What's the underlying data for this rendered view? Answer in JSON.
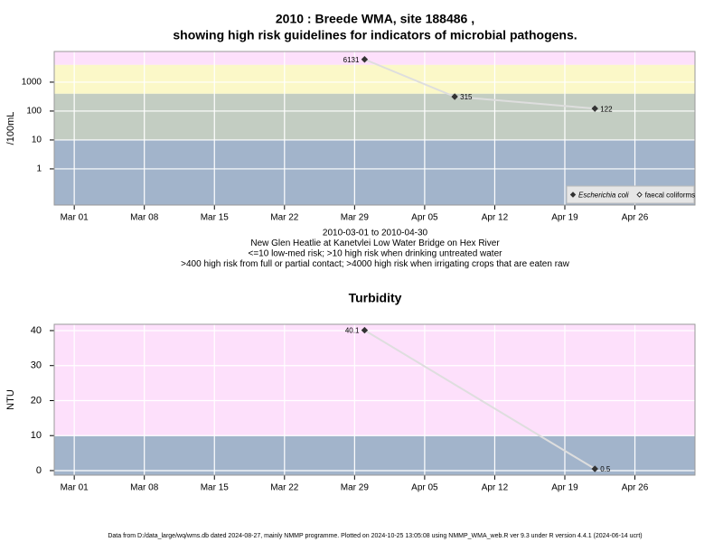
{
  "title": "2010 : Breede WMA, site 188486 ,",
  "subtitle": "showing high risk guidelines for indicators of microbial pathogens.",
  "footer": "Data from D:/data_large/wq/wms.db dated 2024-08-27, mainly NMMP programme. Plotted on 2024-10-25 13:05:08 using NMMP_WMA_web.R ver 9.3 under R version 4.4.1 (2024-06-14 ucrt)",
  "chart_data": [
    {
      "type": "line",
      "ylabel": "/100mL",
      "log_scale": true,
      "grid": true,
      "legend": "bottom-right",
      "x": [
        "2010-03-30",
        "2010-04-08",
        "2010-04-22"
      ],
      "xlim": [
        "2010-02-27",
        "2010-05-02"
      ],
      "xticks": [
        {
          "value": "2010-03-01",
          "label": "Mar 01"
        },
        {
          "value": "2010-03-08",
          "label": "Mar 08"
        },
        {
          "value": "2010-03-15",
          "label": "Mar 15"
        },
        {
          "value": "2010-03-22",
          "label": "Mar 22"
        },
        {
          "value": "2010-03-29",
          "label": "Mar 29"
        },
        {
          "value": "2010-04-05",
          "label": "Apr 05"
        },
        {
          "value": "2010-04-12",
          "label": "Apr 12"
        },
        {
          "value": "2010-04-19",
          "label": "Apr 19"
        },
        {
          "value": "2010-04-26",
          "label": "Apr 26"
        }
      ],
      "ylim": [
        0.056,
        11500
      ],
      "yticks": [
        1,
        10,
        100,
        1000
      ],
      "thresholds": [
        10,
        400,
        4000
      ],
      "band_colors": [
        "#a2b4cb",
        "#c3cdc2",
        "#fbf8c8",
        "#fde0fb"
      ],
      "line_color": "#dedede",
      "series": [
        {
          "name": "Escherichia coli",
          "color": "#333333",
          "values": [
            6131,
            315,
            122
          ]
        },
        {
          "name": "faecal coliforms",
          "color": "#333333",
          "values": [
            null,
            null,
            null
          ]
        }
      ],
      "caption": [
        "2010-03-01 to 2010-04-30",
        "New Glen Heatlie at Kanetvlei Low Water Bridge on Hex River",
        "<=10 low-med risk; >10 high risk when drinking untreated water",
        ">400 high risk from full or partial contact; >4000 high risk when irrigating crops that are eaten raw"
      ]
    },
    {
      "type": "line",
      "title": "Turbidity",
      "ylabel": "NTU",
      "log_scale": false,
      "grid": true,
      "x": [
        "2010-03-30",
        "2010-04-22"
      ],
      "xlim": [
        "2010-02-27",
        "2010-05-02"
      ],
      "xticks": [
        {
          "value": "2010-03-01",
          "label": "Mar 01"
        },
        {
          "value": "2010-03-08",
          "label": "Mar 08"
        },
        {
          "value": "2010-03-15",
          "label": "Mar 15"
        },
        {
          "value": "2010-03-22",
          "label": "Mar 22"
        },
        {
          "value": "2010-03-29",
          "label": "Mar 29"
        },
        {
          "value": "2010-04-05",
          "label": "Apr 05"
        },
        {
          "value": "2010-04-12",
          "label": "Apr 12"
        },
        {
          "value": "2010-04-19",
          "label": "Apr 19"
        },
        {
          "value": "2010-04-26",
          "label": "Apr 26"
        }
      ],
      "ylim": [
        -1.3,
        41.8
      ],
      "yticks": [
        0,
        10,
        20,
        30,
        40
      ],
      "thresholds": [
        10
      ],
      "band_colors": [
        "#a2b4cb",
        "#fde0fb"
      ],
      "line_color": "#dedede",
      "series": [
        {
          "color": "#333333",
          "values": [
            40.1,
            0.5
          ]
        }
      ]
    }
  ]
}
